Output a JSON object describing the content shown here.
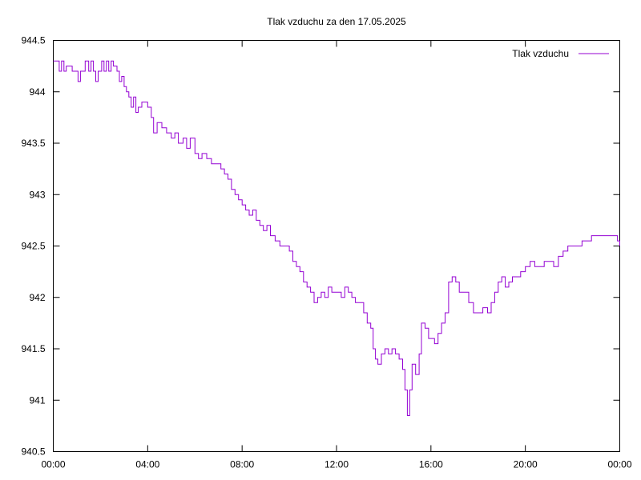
{
  "chart_data": {
    "type": "line",
    "title": "Tlak vzduchu za den 17.05.2025",
    "xlabel": "",
    "ylabel": "",
    "xlim": [
      0,
      24
    ],
    "ylim": [
      940.5,
      944.5
    ],
    "x_ticks": [
      {
        "value": 0,
        "label": "00:00"
      },
      {
        "value": 4,
        "label": "04:00"
      },
      {
        "value": 8,
        "label": "08:00"
      },
      {
        "value": 12,
        "label": "12:00"
      },
      {
        "value": 16,
        "label": "16:00"
      },
      {
        "value": 20,
        "label": "20:00"
      },
      {
        "value": 24,
        "label": "00:00"
      }
    ],
    "y_ticks": [
      {
        "value": 940.5,
        "label": "940.5"
      },
      {
        "value": 941,
        "label": "941"
      },
      {
        "value": 941.5,
        "label": "941.5"
      },
      {
        "value": 942,
        "label": "942"
      },
      {
        "value": 942.5,
        "label": "942.5"
      },
      {
        "value": 943,
        "label": "943"
      },
      {
        "value": 943.5,
        "label": "943.5"
      },
      {
        "value": 944,
        "label": "944"
      },
      {
        "value": 944.5,
        "label": "944.5"
      }
    ],
    "grid": false,
    "legend_position": "top-right",
    "series": [
      {
        "name": "Tlak vzduchu",
        "color": "#9400d3",
        "style": "steps",
        "points": [
          [
            0.0,
            944.3
          ],
          [
            0.25,
            944.2
          ],
          [
            0.35,
            944.3
          ],
          [
            0.45,
            944.2
          ],
          [
            0.55,
            944.25
          ],
          [
            0.8,
            944.2
          ],
          [
            1.05,
            944.1
          ],
          [
            1.15,
            944.2
          ],
          [
            1.35,
            944.3
          ],
          [
            1.5,
            944.2
          ],
          [
            1.6,
            944.3
          ],
          [
            1.7,
            944.2
          ],
          [
            1.8,
            944.1
          ],
          [
            1.9,
            944.2
          ],
          [
            2.05,
            944.3
          ],
          [
            2.15,
            944.2
          ],
          [
            2.25,
            944.3
          ],
          [
            2.35,
            944.2
          ],
          [
            2.45,
            944.3
          ],
          [
            2.55,
            944.25
          ],
          [
            2.7,
            944.2
          ],
          [
            2.8,
            944.1
          ],
          [
            2.9,
            944.15
          ],
          [
            3.0,
            944.05
          ],
          [
            3.1,
            944.0
          ],
          [
            3.2,
            943.95
          ],
          [
            3.3,
            943.85
          ],
          [
            3.4,
            943.95
          ],
          [
            3.5,
            943.8
          ],
          [
            3.6,
            943.85
          ],
          [
            3.75,
            943.9
          ],
          [
            4.0,
            943.85
          ],
          [
            4.15,
            943.75
          ],
          [
            4.25,
            943.6
          ],
          [
            4.4,
            943.7
          ],
          [
            4.6,
            943.65
          ],
          [
            4.8,
            943.6
          ],
          [
            5.0,
            943.55
          ],
          [
            5.15,
            943.6
          ],
          [
            5.3,
            943.5
          ],
          [
            5.5,
            943.55
          ],
          [
            5.65,
            943.45
          ],
          [
            5.8,
            943.55
          ],
          [
            6.0,
            943.4
          ],
          [
            6.15,
            943.35
          ],
          [
            6.3,
            943.4
          ],
          [
            6.5,
            943.35
          ],
          [
            6.7,
            943.3
          ],
          [
            6.9,
            943.3
          ],
          [
            7.1,
            943.25
          ],
          [
            7.25,
            943.2
          ],
          [
            7.4,
            943.15
          ],
          [
            7.55,
            943.05
          ],
          [
            7.7,
            943.0
          ],
          [
            7.85,
            942.95
          ],
          [
            8.0,
            942.9
          ],
          [
            8.15,
            942.85
          ],
          [
            8.3,
            942.8
          ],
          [
            8.45,
            942.85
          ],
          [
            8.6,
            942.75
          ],
          [
            8.75,
            942.7
          ],
          [
            8.9,
            942.65
          ],
          [
            9.05,
            942.7
          ],
          [
            9.2,
            942.6
          ],
          [
            9.4,
            942.55
          ],
          [
            9.6,
            942.5
          ],
          [
            9.8,
            942.5
          ],
          [
            10.0,
            942.45
          ],
          [
            10.15,
            942.35
          ],
          [
            10.3,
            942.3
          ],
          [
            10.45,
            942.25
          ],
          [
            10.6,
            942.15
          ],
          [
            10.75,
            942.1
          ],
          [
            10.9,
            942.05
          ],
          [
            11.05,
            941.95
          ],
          [
            11.2,
            942.0
          ],
          [
            11.35,
            942.05
          ],
          [
            11.5,
            942.0
          ],
          [
            11.65,
            942.1
          ],
          [
            11.8,
            942.05
          ],
          [
            12.0,
            942.05
          ],
          [
            12.2,
            942.0
          ],
          [
            12.35,
            942.1
          ],
          [
            12.5,
            942.05
          ],
          [
            12.65,
            942.0
          ],
          [
            12.8,
            941.95
          ],
          [
            13.0,
            941.95
          ],
          [
            13.15,
            941.85
          ],
          [
            13.3,
            941.75
          ],
          [
            13.45,
            941.7
          ],
          [
            13.55,
            941.5
          ],
          [
            13.65,
            941.4
          ],
          [
            13.75,
            941.35
          ],
          [
            13.9,
            941.45
          ],
          [
            14.05,
            941.5
          ],
          [
            14.2,
            941.45
          ],
          [
            14.35,
            941.5
          ],
          [
            14.5,
            941.45
          ],
          [
            14.65,
            941.4
          ],
          [
            14.8,
            941.3
          ],
          [
            14.9,
            941.1
          ],
          [
            15.0,
            940.85
          ],
          [
            15.1,
            941.1
          ],
          [
            15.2,
            941.35
          ],
          [
            15.35,
            941.25
          ],
          [
            15.5,
            941.45
          ],
          [
            15.6,
            941.75
          ],
          [
            15.75,
            941.7
          ],
          [
            15.9,
            941.6
          ],
          [
            16.0,
            941.6
          ],
          [
            16.15,
            941.55
          ],
          [
            16.3,
            941.65
          ],
          [
            16.45,
            941.75
          ],
          [
            16.6,
            941.85
          ],
          [
            16.75,
            942.15
          ],
          [
            16.9,
            942.2
          ],
          [
            17.05,
            942.15
          ],
          [
            17.2,
            942.05
          ],
          [
            17.4,
            942.05
          ],
          [
            17.6,
            941.95
          ],
          [
            17.8,
            941.85
          ],
          [
            18.0,
            941.85
          ],
          [
            18.2,
            941.9
          ],
          [
            18.4,
            941.85
          ],
          [
            18.55,
            941.95
          ],
          [
            18.7,
            942.05
          ],
          [
            18.85,
            942.15
          ],
          [
            19.0,
            942.2
          ],
          [
            19.15,
            942.1
          ],
          [
            19.3,
            942.15
          ],
          [
            19.45,
            942.2
          ],
          [
            19.6,
            942.2
          ],
          [
            19.8,
            942.25
          ],
          [
            20.0,
            942.3
          ],
          [
            20.2,
            942.35
          ],
          [
            20.4,
            942.3
          ],
          [
            20.6,
            942.3
          ],
          [
            20.8,
            942.35
          ],
          [
            21.0,
            942.35
          ],
          [
            21.2,
            942.3
          ],
          [
            21.4,
            942.4
          ],
          [
            21.6,
            942.45
          ],
          [
            21.8,
            942.5
          ],
          [
            22.0,
            942.5
          ],
          [
            22.2,
            942.5
          ],
          [
            22.4,
            942.55
          ],
          [
            22.6,
            942.55
          ],
          [
            22.8,
            942.6
          ],
          [
            23.0,
            942.6
          ],
          [
            23.2,
            942.6
          ],
          [
            23.4,
            942.6
          ],
          [
            23.6,
            942.6
          ],
          [
            23.75,
            942.6
          ],
          [
            23.9,
            942.55
          ],
          [
            24.0,
            942.5
          ]
        ]
      }
    ]
  }
}
